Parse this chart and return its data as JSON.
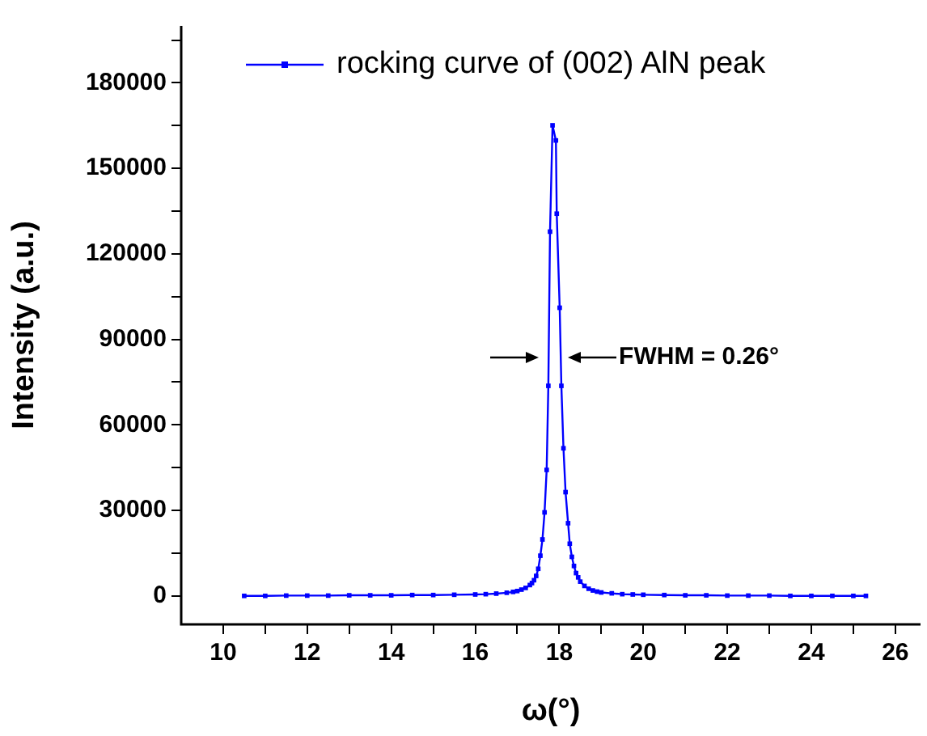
{
  "chart_data": {
    "type": "line",
    "xlabel": "ω(°)",
    "ylabel": "Intensity (a.u.)",
    "xlim": [
      9,
      26.6
    ],
    "ylim": [
      -10000,
      200000
    ],
    "xticks": [
      10,
      {
        "value": 11,
        "label": null
      },
      12,
      {
        "value": 13,
        "label": null
      },
      14,
      {
        "value": 15,
        "label": null
      },
      16,
      {
        "value": 17,
        "label": null
      },
      18,
      {
        "value": 19,
        "label": null
      },
      20,
      {
        "value": 21,
        "label": null
      },
      22,
      {
        "value": 23,
        "label": null
      },
      24,
      {
        "value": 25,
        "label": null
      },
      26
    ],
    "yticks": [
      0,
      {
        "value": 15000,
        "label": null
      },
      30000,
      {
        "value": 45000,
        "label": null
      },
      60000,
      {
        "value": 75000,
        "label": null
      },
      90000,
      {
        "value": 105000,
        "label": null
      },
      120000,
      {
        "value": 135000,
        "label": null
      },
      150000,
      {
        "value": 165000,
        "label": null
      },
      180000,
      {
        "value": 195000,
        "label": null
      }
    ],
    "grid": false,
    "legend": "top left",
    "marker": "square",
    "line_style": "solid",
    "annotations": [
      "FWHM = 0.26°"
    ],
    "series": [
      {
        "name": "rocking curve of (002) AlN peak",
        "color": "#0000ff",
        "x": [
          10.5,
          11,
          11.5,
          12,
          12.5,
          13,
          13.5,
          14,
          14.5,
          15,
          15.5,
          16,
          16.25,
          16.5,
          16.75,
          16.9,
          17,
          17.1,
          17.2,
          17.3,
          17.35,
          17.4,
          17.45,
          17.5,
          17.55,
          17.6,
          17.65,
          17.7,
          17.74,
          17.78,
          17.84,
          17.92,
          17.94,
          18.01,
          18.05,
          18.1,
          18.15,
          18.21,
          18.25,
          18.3,
          18.35,
          18.4,
          18.45,
          18.5,
          18.6,
          18.7,
          18.8,
          18.9,
          19,
          19.25,
          19.5,
          19.75,
          20,
          20.5,
          21,
          21.5,
          22,
          22.5,
          23,
          23.5,
          24,
          24.5,
          25,
          25.3
        ],
        "values": [
          0,
          0,
          100,
          100,
          100,
          200,
          200,
          200,
          300,
          300,
          400,
          500,
          600,
          800,
          1100,
          1400,
          1700,
          2200,
          2800,
          3800,
          4500,
          5500,
          7000,
          9500,
          14100,
          19800,
          29300,
          44200,
          73700,
          127800,
          165100,
          159800,
          134100,
          101100,
          73700,
          51800,
          36400,
          25500,
          18300,
          13700,
          10500,
          8000,
          6500,
          5000,
          3500,
          2500,
          1900,
          1500,
          1200,
          900,
          600,
          500,
          400,
          300,
          200,
          200,
          100,
          100,
          100,
          0,
          0,
          0,
          0,
          0
        ]
      }
    ]
  }
}
